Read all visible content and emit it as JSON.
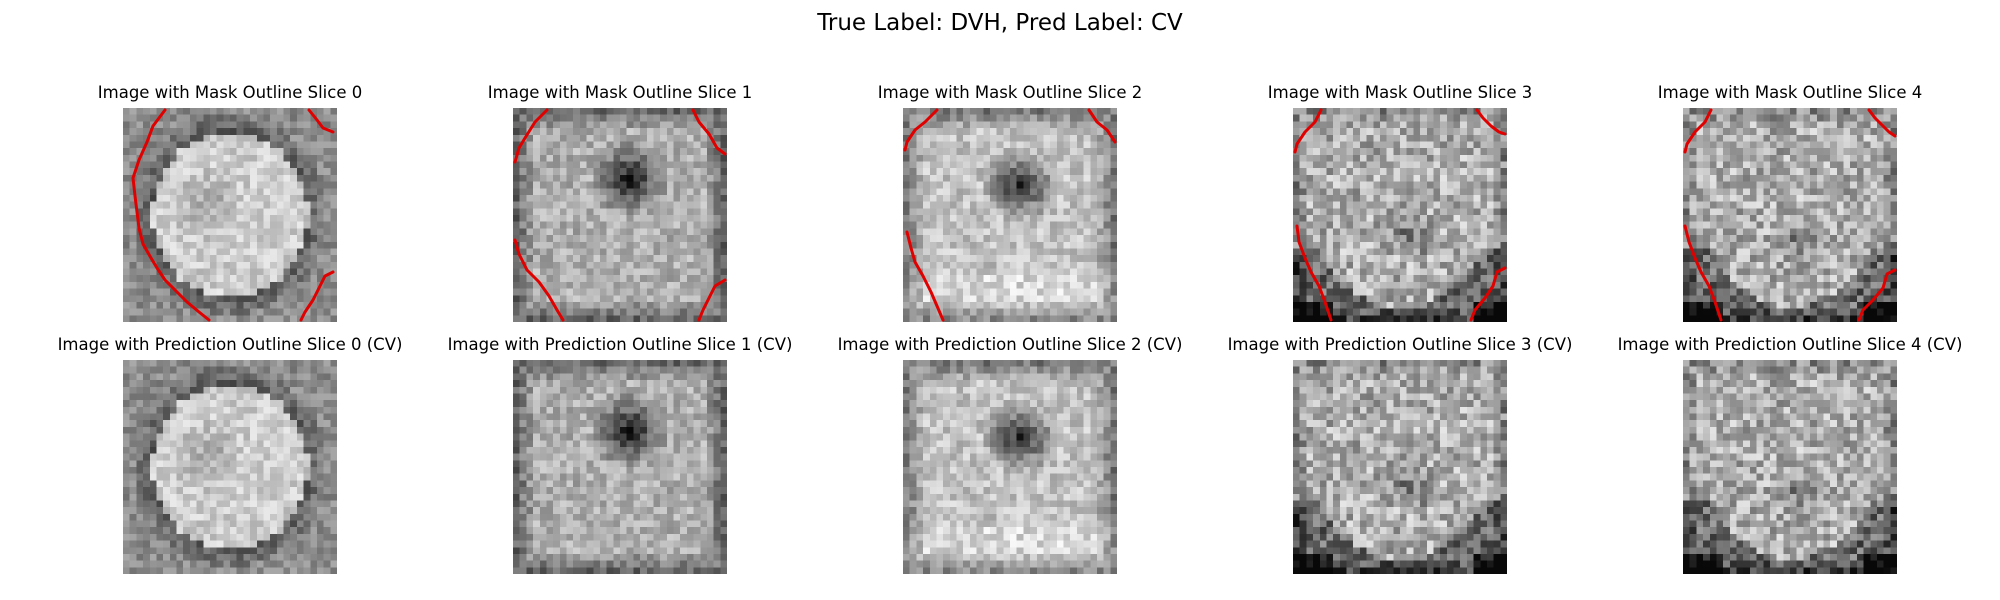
{
  "figure": {
    "title": "True Label: DVH, Pred Label: CV",
    "outline_color": "#e00000"
  },
  "rows": [
    {
      "panels": [
        {
          "title": "Image with Mask Outline Slice 0",
          "has_outline": true
        },
        {
          "title": "Image with Mask Outline Slice 1",
          "has_outline": true
        },
        {
          "title": "Image with Mask Outline Slice 2",
          "has_outline": true
        },
        {
          "title": "Image with Mask Outline Slice 3",
          "has_outline": true
        },
        {
          "title": "Image with Mask Outline Slice 4",
          "has_outline": true
        }
      ]
    },
    {
      "panels": [
        {
          "title": "Image with Prediction Outline Slice 0 (CV)",
          "has_outline": false
        },
        {
          "title": "Image with Prediction Outline Slice 1 (CV)",
          "has_outline": false
        },
        {
          "title": "Image with Prediction Outline Slice 2 (CV)",
          "has_outline": false
        },
        {
          "title": "Image with Prediction Outline Slice 3 (CV)",
          "has_outline": false
        },
        {
          "title": "Image with Prediction Outline Slice 4 (CV)",
          "has_outline": false
        }
      ]
    }
  ]
}
